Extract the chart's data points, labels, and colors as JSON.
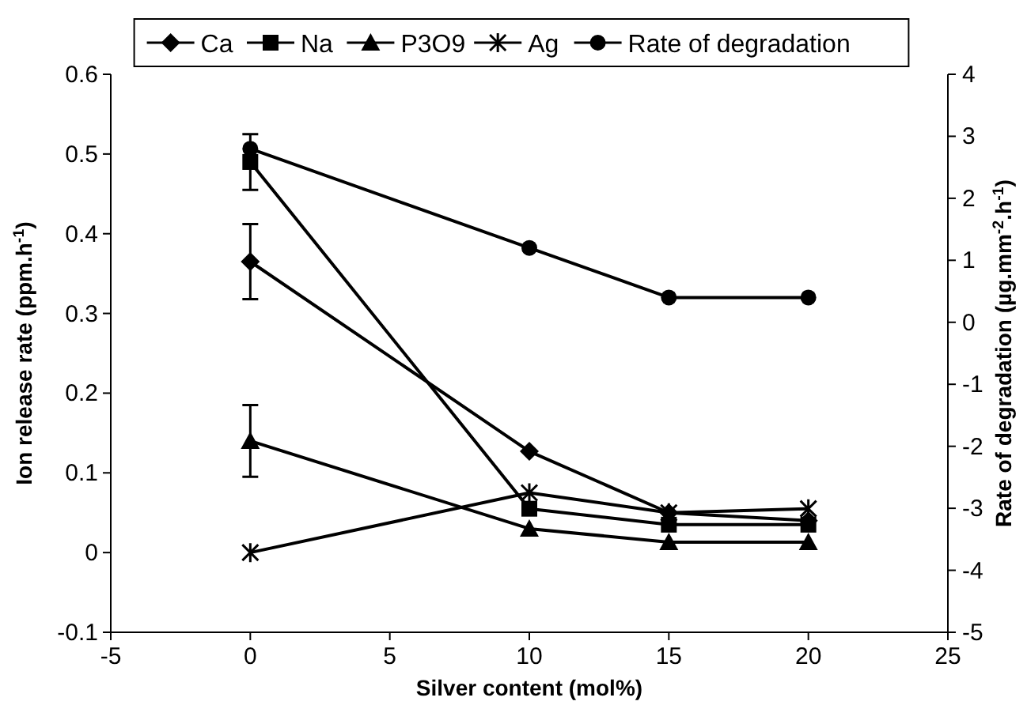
{
  "chart_data": {
    "type": "line",
    "xlabel": "Silver content (mol%)",
    "ylabel": "Ion release rate (ppm.h$^{-1}$)",
    "y2label": "Rate of degradation (µg.mm$^{-2}$.h$^{-1}$)",
    "x": [
      0,
      10,
      15,
      20
    ],
    "xlim": [
      -5,
      25
    ],
    "xticks": [
      -5,
      0,
      5,
      10,
      15,
      20,
      25
    ],
    "ylim": [
      -0.1,
      0.6
    ],
    "yticks": [
      -0.1,
      0,
      0.1,
      0.2,
      0.3,
      0.4,
      0.5,
      0.6
    ],
    "y2lim": [
      -5,
      4
    ],
    "y2ticks": [
      -5,
      -4,
      -3,
      -2,
      -1,
      0,
      1,
      2,
      3,
      4
    ],
    "legend": "top",
    "grid": false,
    "series": [
      {
        "name": "Ca",
        "color": "#000000",
        "marker": "diamond",
        "values": [
          0.365,
          0.127,
          0.05,
          0.04
        ],
        "errors": [
          0.047,
          null,
          null,
          null
        ]
      },
      {
        "name": "Na",
        "color": "#000000",
        "marker": "square",
        "values": [
          0.49,
          0.055,
          0.035,
          0.035
        ],
        "errors": [
          0.035,
          null,
          null,
          null
        ]
      },
      {
        "name": "P3O9",
        "color": "#000000",
        "marker": "triangle",
        "values": [
          0.14,
          0.03,
          0.013,
          0.013
        ],
        "errors": [
          0.045,
          null,
          null,
          null
        ]
      },
      {
        "name": "Ag",
        "color": "#000000",
        "marker": "cross",
        "values": [
          0,
          0.075,
          0.05,
          0.055
        ]
      },
      {
        "name": "Rate of degradation",
        "color": "#000000",
        "marker": "circle",
        "axis": "y2",
        "values": [
          2.8,
          1.2,
          0.4,
          0.4
        ]
      }
    ]
  }
}
